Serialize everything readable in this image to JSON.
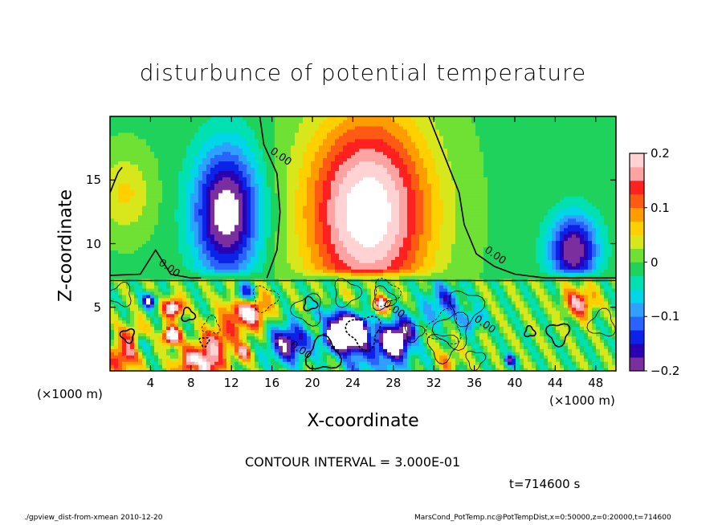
{
  "title": "disturbunce of potential temperature",
  "x_unit_left": "(×1000 m)",
  "x_unit_right": "(×1000 m)",
  "contour_note": "CONTOUR INTERVAL = 3.000E-01",
  "time_note": "t=714600 s",
  "footer_left": "./gpview_dist-from-xmean   2010-12-20",
  "footer_right": "MarsCond_PotTemp.nc@PotTempDist,x=0:50000,z=0:20000,t=714600",
  "colors": {
    "colormap": [
      "#7b2f9e",
      "#2a00b0",
      "#0d22e8",
      "#2a62ff",
      "#2fa0ff",
      "#00d6e8",
      "#00e0b0",
      "#1ed25c",
      "#6fe034",
      "#d8e61c",
      "#ffd000",
      "#ff9c00",
      "#ff5a14",
      "#ff2020",
      "#ffa2a2",
      "#ffd3d3"
    ],
    "contour_line": "#000000"
  },
  "chart_data": {
    "type": "heatmap",
    "title": "disturbunce of potential temperature",
    "xlabel": "X-coordinate",
    "ylabel": "Z-coordinate",
    "xlim": [
      0,
      50
    ],
    "ylim": [
      0,
      20
    ],
    "x_ticks": [
      4,
      8,
      12,
      16,
      20,
      24,
      28,
      32,
      36,
      40,
      44,
      48
    ],
    "y_ticks": [
      5,
      10,
      15
    ],
    "colorbar": {
      "range": [
        -0.2,
        0.2
      ],
      "tick_values": [
        -0.2,
        -0.1,
        0,
        0.1,
        0.2
      ],
      "tick_labels": [
        "−0.2",
        "−0.1",
        "0",
        "0.1",
        "0.2"
      ]
    },
    "contour_interval": 0.3,
    "contour_labels": [
      {
        "text": "0.00",
        "x": 16.8,
        "z": 16.8
      },
      {
        "text": "0.00",
        "x": 5.8,
        "z": 8.0
      },
      {
        "text": "0.00",
        "x": 38.0,
        "z": 9.0
      },
      {
        "text": "0.00",
        "x": 18.8,
        "z": 1.6
      },
      {
        "text": "0.00",
        "x": 28.0,
        "z": 4.8
      },
      {
        "text": "0.00",
        "x": 37.0,
        "z": 3.6
      }
    ],
    "upper_features": [
      {
        "x": 11.5,
        "z": 12.5,
        "value": -0.23,
        "sx": 3.2,
        "sz": 5.0
      },
      {
        "x": 25.5,
        "z": 12.5,
        "value": 0.24,
        "sx": 6.0,
        "sz": 7.5
      },
      {
        "x": 45.8,
        "z": 9.5,
        "value": -0.2,
        "sx": 2.4,
        "sz": 2.8
      },
      {
        "x": 1.5,
        "z": 14.0,
        "value": 0.06,
        "sx": 2.5,
        "sz": 3.0
      }
    ]
  }
}
